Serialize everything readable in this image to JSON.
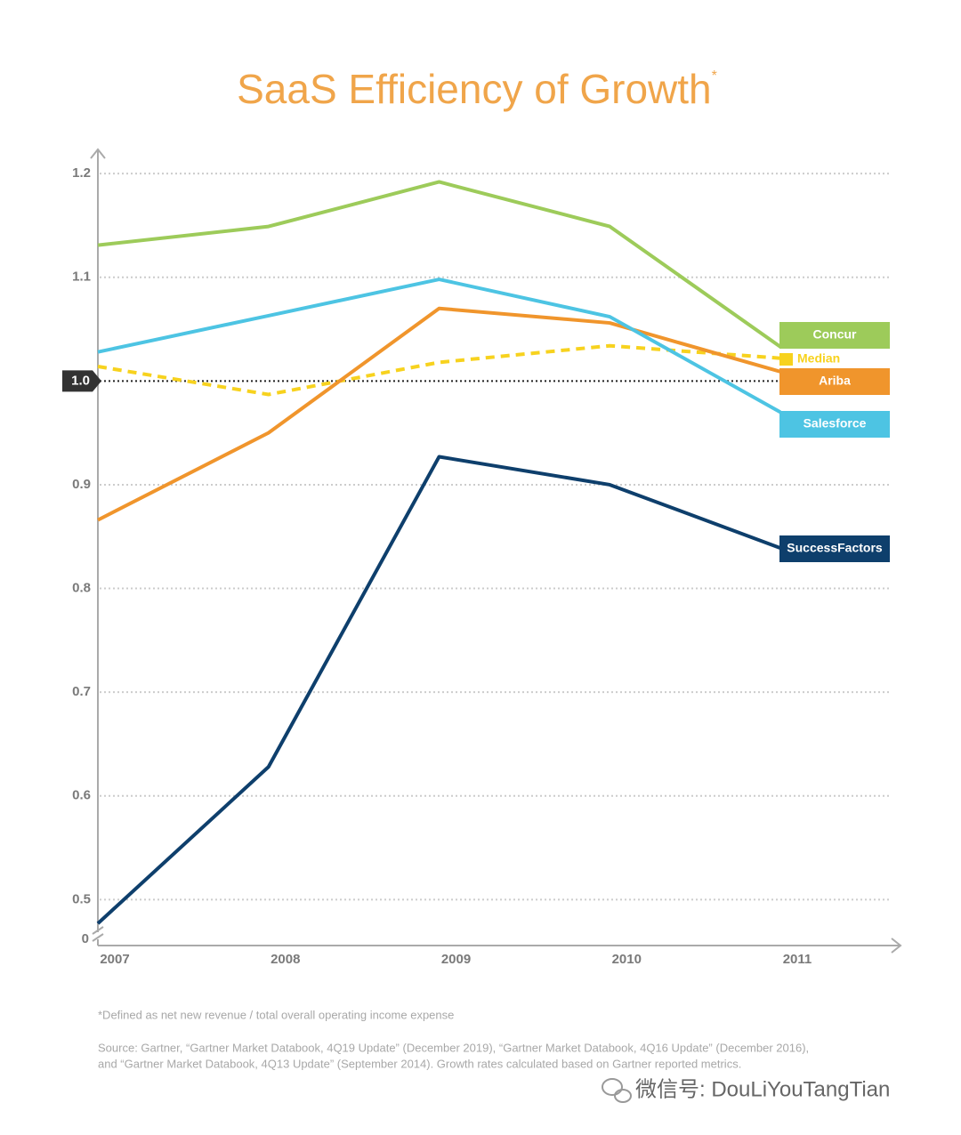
{
  "chart_data": {
    "type": "line",
    "title": "SaaS Efficiency of Growth",
    "title_mark": "*",
    "categories": [
      "2007",
      "2008",
      "2009",
      "2010",
      "2011"
    ],
    "series": [
      {
        "name": "Concur",
        "color": "#9dcb5a",
        "values": [
          1.131,
          1.149,
          1.192,
          1.149,
          1.033
        ]
      },
      {
        "name": "Median",
        "color": "#f7d21e",
        "dashed": true,
        "values": [
          1.014,
          0.987,
          1.018,
          1.034,
          1.022
        ]
      },
      {
        "name": "Ariba",
        "color": "#f0952c",
        "values": [
          0.866,
          0.95,
          1.07,
          1.056,
          1.009
        ]
      },
      {
        "name": "Salesforce",
        "color": "#4dc4e3",
        "values": [
          1.028,
          1.063,
          1.098,
          1.062,
          0.97
        ]
      },
      {
        "name": "SuccessFactors",
        "color": "#0e3f6c",
        "values": [
          0.477,
          0.628,
          0.927,
          0.9,
          0.839
        ]
      }
    ],
    "ylim": [
      0.46,
      1.225
    ],
    "yticks": [
      0.5,
      0.6,
      0.7,
      0.8,
      0.9,
      {
        "value": 1,
        "label": "1.0"
      },
      1.1,
      1.2
    ],
    "reference_value": 1,
    "axis_break_label": "0",
    "grid": true,
    "footnote": "*Defined as net new revenue / total overall operating income expense",
    "source": [
      "Source: Gartner, “Gartner Market Databook, 4Q19 Update” (December 2019), “Gartner Market Databook, 4Q16 Update” (December 2016),",
      "and “Gartner Market Databook, 4Q13 Update” (September 2014). Growth rates calculated based on Gartner reported metrics."
    ],
    "watermark": "微信号: DouLiYouTangTian"
  }
}
